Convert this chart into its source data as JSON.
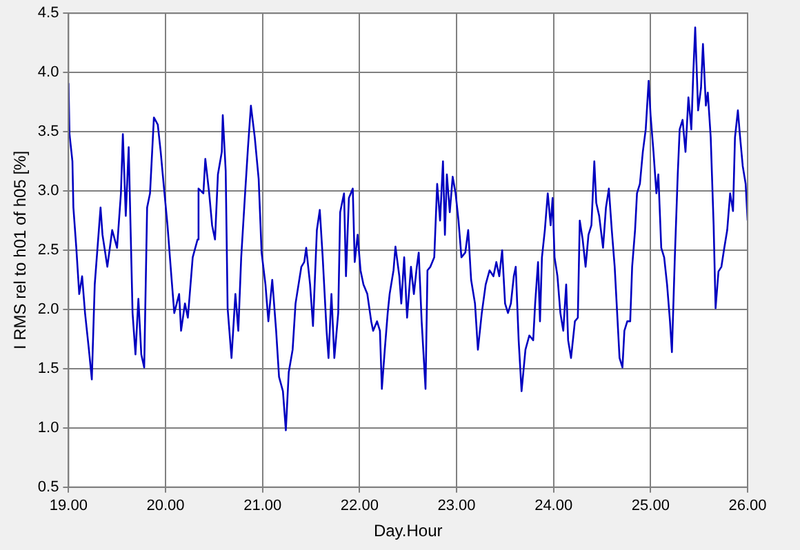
{
  "chart_data": {
    "type": "line",
    "xlabel": "Day.Hour",
    "ylabel": "I RMS rel to h01 of h05 [%]",
    "xlim": [
      19,
      26
    ],
    "xticks": [
      {
        "value": 19,
        "label": "19.00"
      },
      {
        "value": 20,
        "label": "20.00"
      },
      {
        "value": 21,
        "label": "21.00"
      },
      {
        "value": 22,
        "label": "22.00"
      },
      {
        "value": 23,
        "label": "23.00"
      },
      {
        "value": 24,
        "label": "24.00"
      },
      {
        "value": 25,
        "label": "25.00"
      },
      {
        "value": 26,
        "label": "26.00"
      }
    ],
    "ylim": [
      0.5,
      4.5
    ],
    "yticks": [
      {
        "value": 0.5,
        "label": "0.5"
      },
      {
        "value": 1,
        "label": "1.0"
      },
      {
        "value": 1.5,
        "label": "1.5"
      },
      {
        "value": 2,
        "label": "2.0"
      },
      {
        "value": 2.5,
        "label": "2.5"
      },
      {
        "value": 3,
        "label": "3.0"
      },
      {
        "value": 3.5,
        "label": "3.5"
      },
      {
        "value": 4,
        "label": "4.0"
      },
      {
        "value": 4.5,
        "label": "4.5"
      }
    ],
    "grid": true,
    "legend": false,
    "marker": "none",
    "line_style": "solid",
    "x": [
      19.0,
      19.01,
      19.04,
      19.05,
      19.08,
      19.11,
      19.14,
      19.17,
      19.21,
      19.24,
      19.27,
      19.33,
      19.35,
      19.4,
      19.45,
      19.5,
      19.54,
      19.56,
      19.59,
      19.62,
      19.66,
      19.69,
      19.72,
      19.75,
      19.78,
      19.81,
      19.84,
      19.88,
      19.92,
      19.95,
      19.98,
      20.02,
      20.06,
      20.09,
      20.14,
      20.16,
      20.2,
      20.23,
      20.28,
      20.33,
      20.34,
      20.39,
      20.41,
      20.45,
      20.48,
      20.51,
      20.54,
      20.58,
      20.59,
      20.62,
      20.64,
      20.68,
      20.72,
      20.75,
      20.78,
      20.82,
      20.85,
      20.88,
      20.92,
      20.96,
      20.99,
      21.03,
      21.06,
      21.1,
      21.14,
      21.17,
      21.21,
      21.24,
      21.27,
      21.31,
      21.34,
      21.4,
      21.43,
      21.45,
      21.49,
      21.52,
      21.56,
      21.59,
      21.62,
      21.66,
      21.68,
      21.71,
      21.74,
      21.78,
      21.8,
      21.84,
      21.86,
      21.89,
      21.93,
      21.95,
      21.98,
      22.01,
      22.04,
      22.08,
      22.12,
      22.14,
      22.18,
      22.21,
      22.23,
      22.26,
      22.29,
      22.31,
      22.35,
      22.37,
      22.41,
      22.43,
      22.46,
      22.49,
      22.53,
      22.56,
      22.59,
      22.61,
      22.64,
      22.68,
      22.7,
      22.73,
      22.77,
      22.8,
      22.83,
      22.86,
      22.88,
      22.9,
      22.93,
      22.96,
      22.99,
      23.02,
      23.05,
      23.09,
      23.12,
      23.15,
      23.19,
      23.22,
      23.26,
      23.3,
      23.34,
      23.38,
      23.41,
      23.44,
      23.47,
      23.5,
      23.53,
      23.56,
      23.59,
      23.61,
      23.64,
      23.67,
      23.71,
      23.75,
      23.79,
      23.81,
      23.84,
      23.86,
      23.88,
      23.91,
      23.94,
      23.97,
      23.99,
      24.01,
      24.04,
      24.07,
      24.1,
      24.13,
      24.15,
      24.18,
      24.22,
      24.25,
      24.27,
      24.3,
      24.33,
      24.36,
      24.39,
      24.42,
      24.44,
      24.47,
      24.51,
      24.54,
      24.57,
      24.6,
      24.63,
      24.66,
      24.68,
      24.71,
      24.73,
      24.76,
      24.79,
      24.81,
      24.84,
      24.86,
      24.89,
      24.92,
      24.95,
      24.98,
      25.0,
      25.03,
      25.06,
      25.08,
      25.11,
      25.14,
      25.17,
      25.2,
      25.22,
      25.25,
      25.28,
      25.3,
      25.33,
      25.36,
      25.39,
      25.42,
      25.44,
      25.46,
      25.49,
      25.52,
      25.54,
      25.57,
      25.59,
      25.62,
      25.65,
      25.67,
      25.7,
      25.73,
      25.76,
      25.79,
      25.82,
      25.85,
      25.87,
      25.9,
      25.92,
      25.95,
      25.98,
      26.0
    ],
    "series": [
      {
        "color": "#0000c0",
        "values": [
          3.91,
          3.48,
          3.25,
          2.86,
          2.52,
          2.13,
          2.28,
          1.97,
          1.66,
          1.41,
          2.21,
          2.86,
          2.63,
          2.36,
          2.67,
          2.52,
          2.98,
          3.48,
          2.79,
          3.37,
          1.97,
          1.62,
          2.09,
          1.62,
          1.51,
          2.86,
          2.98,
          3.62,
          3.56,
          3.33,
          3.06,
          2.71,
          2.28,
          1.97,
          2.13,
          1.82,
          2.05,
          1.93,
          2.44,
          2.59,
          3.02,
          2.98,
          3.27,
          2.98,
          2.71,
          2.59,
          3.14,
          3.33,
          3.64,
          3.17,
          2.01,
          1.59,
          2.13,
          1.82,
          2.44,
          2.98,
          3.37,
          3.72,
          3.45,
          3.1,
          2.48,
          2.21,
          1.9,
          2.25,
          1.82,
          1.43,
          1.31,
          0.98,
          1.47,
          1.66,
          2.05,
          2.36,
          2.4,
          2.52,
          2.21,
          1.86,
          2.67,
          2.84,
          2.44,
          1.82,
          1.59,
          2.13,
          1.59,
          1.97,
          2.82,
          2.98,
          2.28,
          2.94,
          3.02,
          2.4,
          2.63,
          2.33,
          2.21,
          2.13,
          1.9,
          1.82,
          1.9,
          1.82,
          1.33,
          1.66,
          1.97,
          2.13,
          2.33,
          2.53,
          2.28,
          2.05,
          2.44,
          1.93,
          2.36,
          2.13,
          2.36,
          2.48,
          1.9,
          1.33,
          2.33,
          2.36,
          2.44,
          3.06,
          2.75,
          3.25,
          2.63,
          3.14,
          2.82,
          3.12,
          2.98,
          2.75,
          2.44,
          2.48,
          2.67,
          2.25,
          2.05,
          1.66,
          1.97,
          2.21,
          2.33,
          2.28,
          2.4,
          2.28,
          2.5,
          2.05,
          1.97,
          2.05,
          2.28,
          2.36,
          1.74,
          1.31,
          1.66,
          1.78,
          1.74,
          2.05,
          2.4,
          1.9,
          2.44,
          2.67,
          2.98,
          2.71,
          2.94,
          2.44,
          2.28,
          1.97,
          1.82,
          2.21,
          1.74,
          1.59,
          1.9,
          1.93,
          2.75,
          2.59,
          2.36,
          2.63,
          2.71,
          3.25,
          2.9,
          2.79,
          2.52,
          2.86,
          3.02,
          2.67,
          2.36,
          1.9,
          1.59,
          1.51,
          1.82,
          1.9,
          1.9,
          2.36,
          2.67,
          2.98,
          3.06,
          3.33,
          3.52,
          3.93,
          3.64,
          3.33,
          2.98,
          3.14,
          2.52,
          2.44,
          2.21,
          1.9,
          1.64,
          2.44,
          3.14,
          3.52,
          3.6,
          3.33,
          3.79,
          3.52,
          3.99,
          4.38,
          3.68,
          3.87,
          4.24,
          3.72,
          3.83,
          3.45,
          2.71,
          2.01,
          2.32,
          2.36,
          2.52,
          2.67,
          2.98,
          2.83,
          3.45,
          3.68,
          3.48,
          3.21,
          3.06,
          2.75
        ]
      }
    ]
  }
}
